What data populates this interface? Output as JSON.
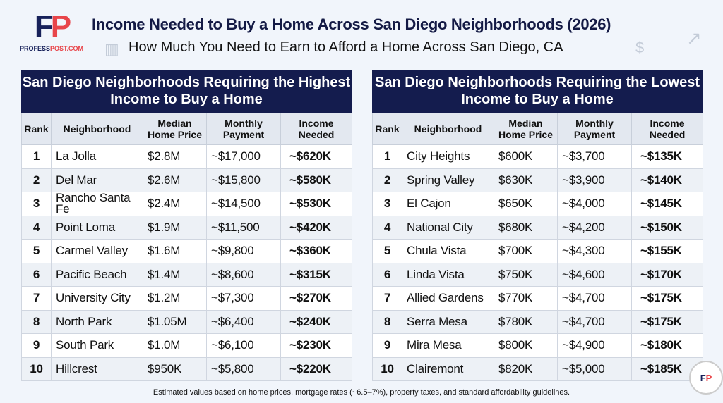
{
  "brand": {
    "logo_f": "F",
    "logo_p": "P",
    "site_a": "PROFESS",
    "site_b": "POST.COM"
  },
  "title": "Income Needed to Buy a Home Across San Diego Neighborhoods (2026)",
  "subtitle": "How Much You Need to Earn to Afford a Home Across San Diego, CA",
  "columns": [
    "Rank",
    "Neighborhood",
    "Median Home Price",
    "Monthly Payment",
    "Income Needed"
  ],
  "highest": {
    "heading": "San Diego Neighborhoods Requiring the Highest Income to Buy a Home",
    "rows": [
      [
        "1",
        "La Jolla",
        "$2.8M",
        "~$17,000",
        "~$620K"
      ],
      [
        "2",
        "Del Mar",
        "$2.6M",
        "~$15,800",
        "~$580K"
      ],
      [
        "3",
        "Rancho Santa Fe",
        "$2.4M",
        "~$14,500",
        "~$530K"
      ],
      [
        "4",
        "Point Loma",
        "$1.9M",
        "~$11,500",
        "~$420K"
      ],
      [
        "5",
        "Carmel Valley",
        "$1.6M",
        "~$9,800",
        "~$360K"
      ],
      [
        "6",
        "Pacific Beach",
        "$1.4M",
        "~$8,600",
        "~$315K"
      ],
      [
        "7",
        "University City",
        "$1.2M",
        "~$7,300",
        "~$270K"
      ],
      [
        "8",
        "North Park",
        "$1.05M",
        "~$6,400",
        "~$240K"
      ],
      [
        "9",
        "South Park",
        "$1.0M",
        "~$6,100",
        "~$230K"
      ],
      [
        "10",
        "Hillcrest",
        "$950K",
        "~$5,800",
        "~$220K"
      ]
    ]
  },
  "lowest": {
    "heading": "San Diego Neighborhoods Requiring the Lowest Income to Buy a Home",
    "rows": [
      [
        "1",
        "City Heights",
        "$600K",
        "~$3,700",
        "~$135K"
      ],
      [
        "2",
        "Spring Valley",
        "$630K",
        "~$3,900",
        "~$140K"
      ],
      [
        "3",
        "El Cajon",
        "$650K",
        "~$4,000",
        "~$145K"
      ],
      [
        "4",
        "National City",
        "$680K",
        "~$4,200",
        "~$150K"
      ],
      [
        "5",
        "Chula Vista",
        "$700K",
        "~$4,300",
        "~$155K"
      ],
      [
        "6",
        "Linda Vista",
        "$750K",
        "~$4,600",
        "~$170K"
      ],
      [
        "7",
        "Allied Gardens",
        "$770K",
        "~$4,700",
        "~$175K"
      ],
      [
        "8",
        "Serra Mesa",
        "$780K",
        "~$4,700",
        "~$175K"
      ],
      [
        "9",
        "Mira Mesa",
        "$800K",
        "~$4,900",
        "~$180K"
      ],
      [
        "10",
        "Clairemont",
        "$820K",
        "~$5,000",
        "~$185K"
      ]
    ]
  },
  "footnote": "Estimated values based on home prices, mortgage rates (~6.5–7%), property taxes, and standard affordability guidelines.",
  "icons": [
    "chart-icon",
    "money-hand-icon",
    "growth-chart-icon"
  ]
}
